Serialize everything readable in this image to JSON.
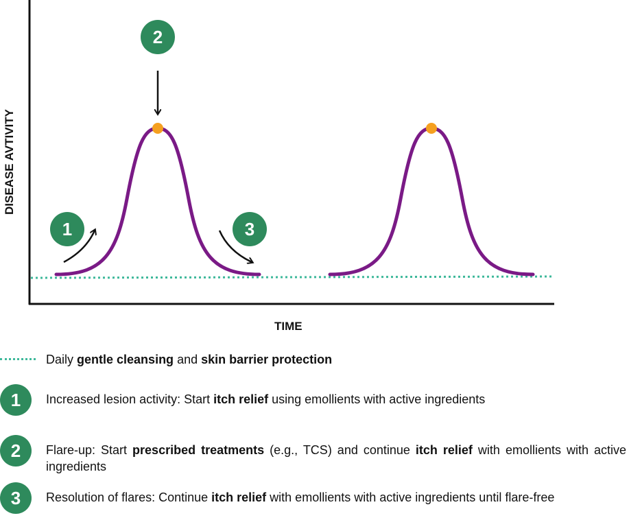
{
  "axes": {
    "y_label": "DISEASE AVTIVITY",
    "x_label": "TIME"
  },
  "markers": {
    "step1": "1",
    "step2": "2",
    "step3": "3"
  },
  "colors": {
    "curve": "#7a1a86",
    "peak_dot": "#f5a020",
    "baseline": "#3db89a",
    "badge": "#2e8a5c"
  },
  "legend": {
    "baseline": {
      "prefix": "Daily ",
      "bold1": "gentle cleansing",
      "mid": " and ",
      "bold2": "skin barrier protection"
    },
    "item1": {
      "num": "1",
      "prefix": "Increased lesion activity: Start ",
      "bold1": "itch relief",
      "suffix": " using emollients with active ingredients"
    },
    "item2": {
      "num": "2",
      "prefix": "Flare-up: Start ",
      "bold1": "prescribed treatments",
      "mid": " (e.g., TCS) and continue ",
      "bold2": "itch relief",
      "suffix": " with emollients with active ingredients"
    },
    "item3": {
      "num": "3",
      "prefix": "Resolution of flares: Continue ",
      "bold1": "itch relief",
      "suffix": " with emollients with active ingredients until flare-free"
    }
  }
}
